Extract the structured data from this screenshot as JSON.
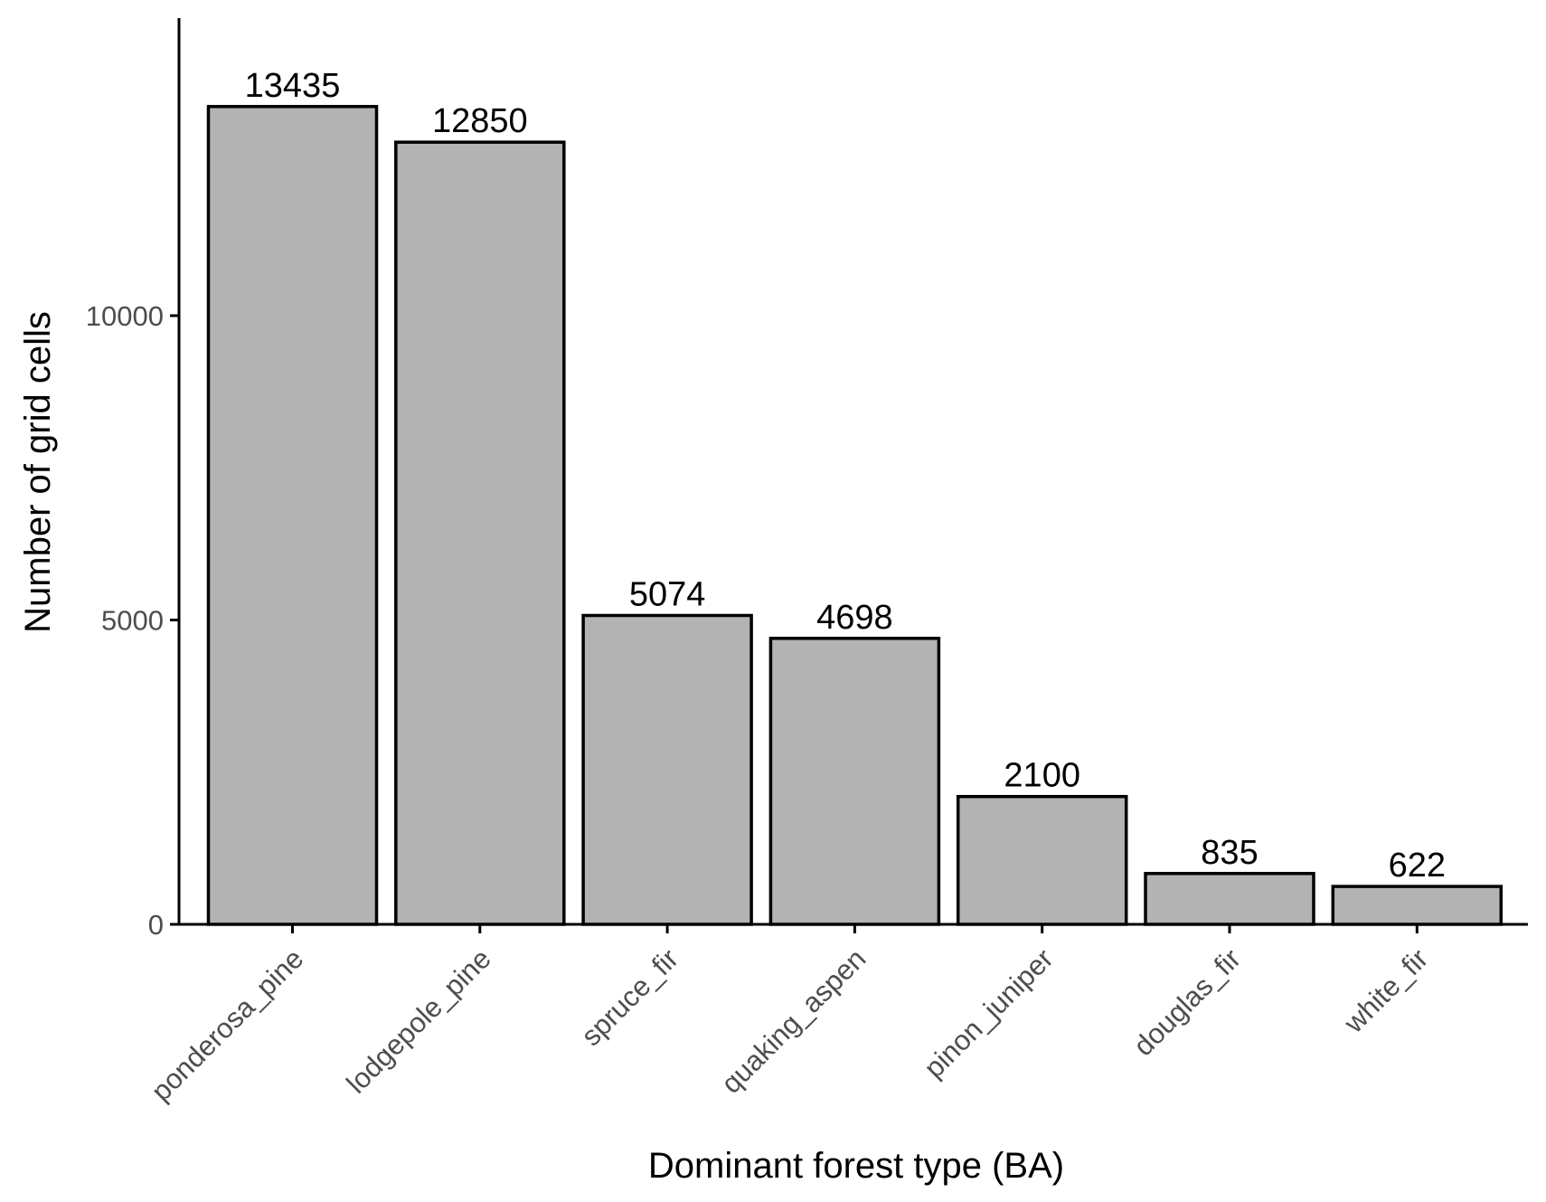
{
  "chart_data": {
    "type": "bar",
    "categories": [
      "ponderosa_pine",
      "lodgepole_pine",
      "spruce_fir",
      "quaking_aspen",
      "pinon_juniper",
      "douglas_fir",
      "white_fir"
    ],
    "values": [
      13435,
      12850,
      5074,
      4698,
      2100,
      835,
      622
    ],
    "value_labels": [
      "13435",
      "12850",
      "5074",
      "4698",
      "2100",
      "835",
      "622"
    ],
    "title": "",
    "xlabel": "Dominant forest type (BA)",
    "ylabel": "Number of grid cells",
    "ylim": [
      0,
      14000
    ],
    "yticks": [
      0,
      5000,
      10000
    ],
    "ytick_labels": [
      "0",
      "5000",
      "10000"
    ],
    "grid": false,
    "legend": "none",
    "colors": {
      "bar_fill": "#b3b3b3",
      "bar_stroke": "#000000"
    }
  }
}
